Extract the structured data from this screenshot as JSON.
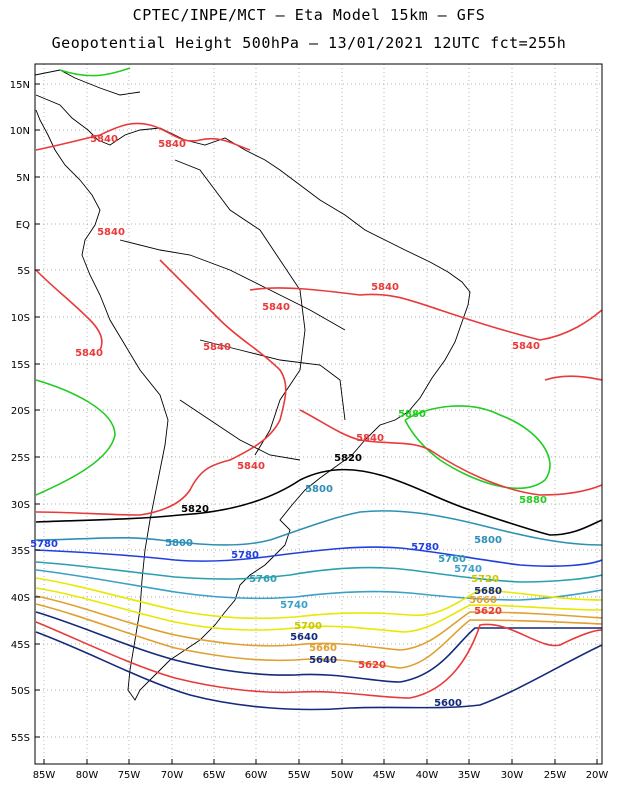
{
  "title": {
    "line1": "CPTEC/INPE/MCT –  Eta Model 15km – GFS",
    "line2": "Geopotential Height 500hPa – 13/01/2021 12UTC fct=255h"
  },
  "axes": {
    "lat_ticks": [
      "15N",
      "10N",
      "5N",
      "EQ",
      "5S",
      "10S",
      "15S",
      "20S",
      "25S",
      "30S",
      "35S",
      "40S",
      "45S",
      "50S",
      "55S"
    ],
    "lon_ticks": [
      "85W",
      "80W",
      "75W",
      "70W",
      "65W",
      "60W",
      "55W",
      "50W",
      "45W",
      "40W",
      "35W",
      "30W",
      "25W",
      "20W"
    ],
    "lat_range": [
      17,
      -57
    ],
    "lon_range": [
      -86,
      -20
    ],
    "grid": true
  },
  "contours": [
    {
      "level": "5840",
      "color": "#e83a3a"
    },
    {
      "level": "5880",
      "color": "#22cc22"
    },
    {
      "level": "5820",
      "color": "#000000"
    },
    {
      "level": "5800",
      "color": "#2e8fb5"
    },
    {
      "level": "5780",
      "color": "#1f3fe0"
    },
    {
      "level": "5760",
      "color": "#2a9fb0"
    },
    {
      "level": "5740",
      "color": "#3aa0c8"
    },
    {
      "level": "5720",
      "color": "#e8e800"
    },
    {
      "level": "5700",
      "color": "#e8e800"
    },
    {
      "level": "5680",
      "color": "#e0a030"
    },
    {
      "level": "5660",
      "color": "#e0a030"
    },
    {
      "level": "5640",
      "color": "#142a7a"
    },
    {
      "level": "5620",
      "color": "#e83a3a"
    },
    {
      "level": "5600",
      "color": "#142a7a"
    }
  ],
  "labels": [
    {
      "text": "5840",
      "color": "#e83a3a"
    },
    {
      "text": "5840",
      "color": "#e83a3a"
    },
    {
      "text": "5840",
      "color": "#e83a3a"
    },
    {
      "text": "5840",
      "color": "#e83a3a"
    },
    {
      "text": "5840",
      "color": "#e83a3a"
    },
    {
      "text": "5840",
      "color": "#e83a3a"
    },
    {
      "text": "5840",
      "color": "#e83a3a"
    },
    {
      "text": "5840",
      "color": "#e83a3a"
    },
    {
      "text": "5840",
      "color": "#e83a3a"
    },
    {
      "text": "5840",
      "color": "#e83a3a"
    },
    {
      "text": "5880",
      "color": "#22cc22"
    },
    {
      "text": "5880",
      "color": "#22cc22"
    },
    {
      "text": "5820",
      "color": "#000000"
    },
    {
      "text": "5820",
      "color": "#000000"
    },
    {
      "text": "5800",
      "color": "#2e8fb5"
    },
    {
      "text": "5800",
      "color": "#2e8fb5"
    },
    {
      "text": "5800",
      "color": "#2e8fb5"
    },
    {
      "text": "5780",
      "color": "#1f3fe0"
    },
    {
      "text": "5780",
      "color": "#1f3fe0"
    },
    {
      "text": "5780",
      "color": "#1f3fe0"
    },
    {
      "text": "5760",
      "color": "#2a9fb0"
    },
    {
      "text": "5760",
      "color": "#2a9fb0"
    },
    {
      "text": "5740",
      "color": "#3aa0c8"
    },
    {
      "text": "5740",
      "color": "#3aa0c8"
    },
    {
      "text": "5720",
      "color": "#c8c800"
    },
    {
      "text": "5700",
      "color": "#c8c800"
    },
    {
      "text": "5680",
      "color": "#142a7a"
    },
    {
      "text": "5660",
      "color": "#e0a030"
    },
    {
      "text": "5640",
      "color": "#142a7a"
    },
    {
      "text": "5620",
      "color": "#e83a3a"
    },
    {
      "text": "5620",
      "color": "#e83a3a"
    },
    {
      "text": "5600",
      "color": "#142a7a"
    },
    {
      "text": "5660",
      "color": "#e0a030"
    },
    {
      "text": "5640",
      "color": "#142a7a"
    }
  ]
}
